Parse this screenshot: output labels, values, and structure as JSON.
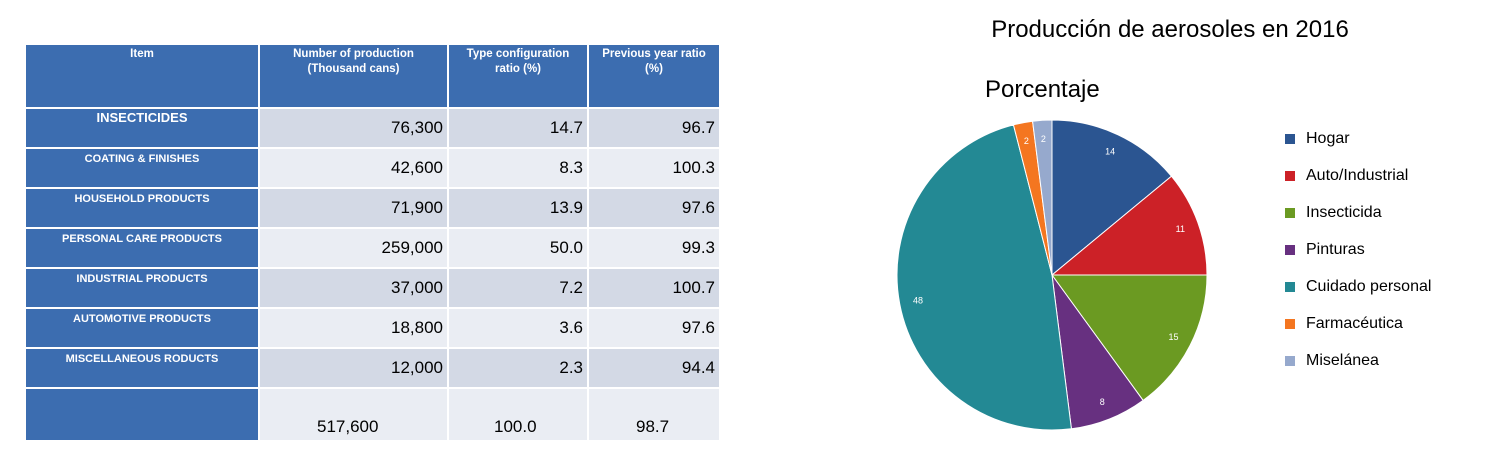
{
  "table": {
    "headers": [
      "Item",
      "Number of production\n(Thousand cans)",
      "Type configuration\nratio      (%)",
      "Previous year ratio\n(%)"
    ],
    "rows": [
      {
        "item": "INSECTICIDES",
        "production": "76,300",
        "config_ratio": "14.7",
        "prev_ratio": "96.7"
      },
      {
        "item": "COATING & FINISHES",
        "production": "42,600",
        "config_ratio": "8.3",
        "prev_ratio": "100.3"
      },
      {
        "item": "HOUSEHOLD PRODUCTS",
        "production": "71,900",
        "config_ratio": "13.9",
        "prev_ratio": "97.6"
      },
      {
        "item": "PERSONAL CARE PRODUCTS",
        "production": "259,000",
        "config_ratio": "50.0",
        "prev_ratio": "99.3"
      },
      {
        "item": "INDUSTRIAL PRODUCTS",
        "production": "37,000",
        "config_ratio": "7.2",
        "prev_ratio": "100.7"
      },
      {
        "item": "AUTOMOTIVE PRODUCTS",
        "production": "18,800",
        "config_ratio": "3.6",
        "prev_ratio": "97.6"
      },
      {
        "item": "MISCELLANEOUS RODUCTS",
        "production": "12,000",
        "config_ratio": "2.3",
        "prev_ratio": "94.4"
      }
    ],
    "total": {
      "item": "",
      "production": "517,600",
      "config_ratio": "100.0",
      "prev_ratio": "98.7"
    }
  },
  "chart_data": {
    "type": "pie",
    "title": "Producción de aerosoles en 2016",
    "subtitle": "Porcentaje",
    "legend_position": "right",
    "slices": [
      {
        "label": "Hogar",
        "value": 14,
        "color": "#2b5591"
      },
      {
        "label": "Auto/Industrial",
        "value": 11,
        "color": "#cc2127"
      },
      {
        "label": "Insecticida",
        "value": 15,
        "color": "#6b9a22"
      },
      {
        "label": "Pinturas",
        "value": 8,
        "color": "#673080"
      },
      {
        "label": "Cuidado personal",
        "value": 48,
        "color": "#238994"
      },
      {
        "label": "Farmacéutica",
        "value": 2,
        "color": "#f47620"
      },
      {
        "label": "Miselánea",
        "value": 2,
        "color": "#96a9cd"
      }
    ]
  }
}
